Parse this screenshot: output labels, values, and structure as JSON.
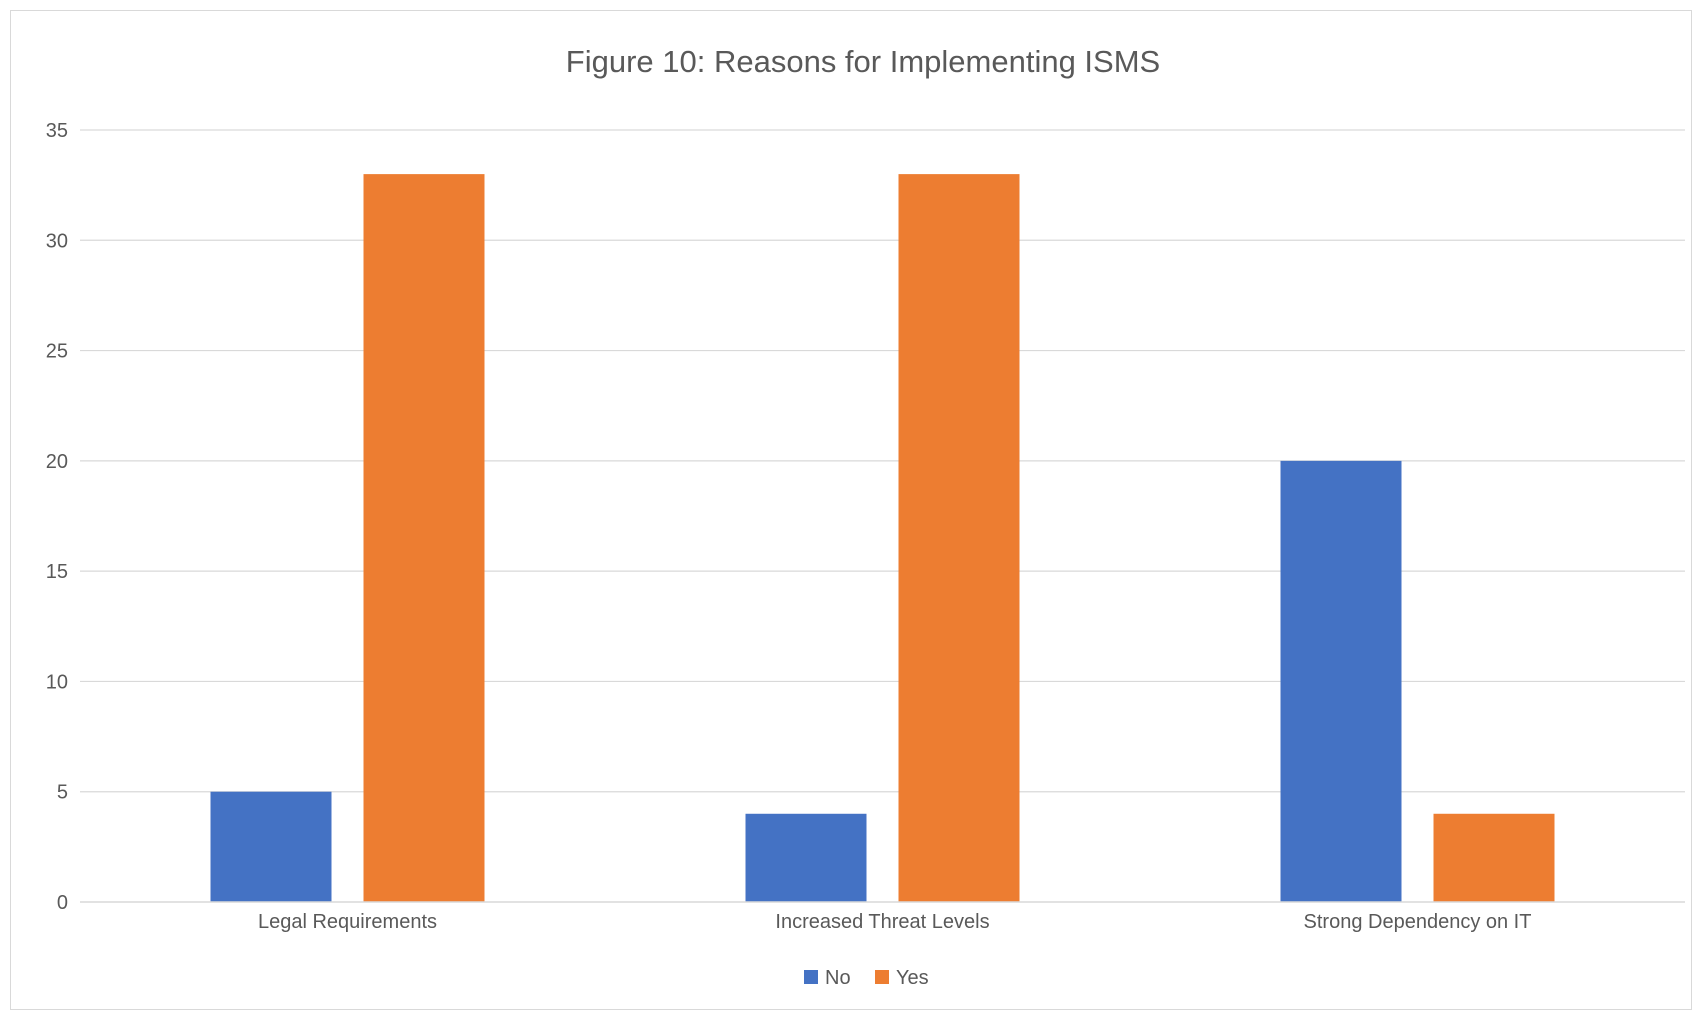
{
  "chart_data": {
    "type": "bar",
    "title": "Figure 10: Reasons for Implementing ISMS",
    "xlabel": "",
    "ylabel": "",
    "categories": [
      "Legal Requirements",
      "Increased Threat Levels",
      "Strong Dependency on IT"
    ],
    "series": [
      {
        "name": "No",
        "values": [
          5,
          4,
          20
        ],
        "color": "#4472C4"
      },
      {
        "name": "Yes",
        "values": [
          33,
          33,
          4
        ],
        "color": "#ED7D31"
      }
    ],
    "ylim": [
      0,
      35
    ],
    "yticks": [
      "0",
      "5",
      "10",
      "15",
      "20",
      "25",
      "30",
      "35"
    ],
    "grid": true,
    "legend_position": "bottom"
  }
}
